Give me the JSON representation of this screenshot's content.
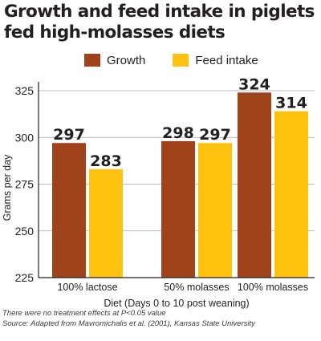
{
  "chart_data": {
    "type": "bar",
    "title": "Growth and feed intake in piglets fed high-molasses diets",
    "categories": [
      "100% lactose",
      "50% molasses",
      "100% molasses"
    ],
    "series": [
      {
        "name": "Growth",
        "values": [
          297,
          298,
          324
        ],
        "color": "#a1431a"
      },
      {
        "name": "Feed intake",
        "values": [
          283,
          297,
          314
        ],
        "color": "#ffc20e"
      }
    ],
    "xlabel": "Diet (Days 0 to 10 post weaning)",
    "ylabel": "Grams per day",
    "ylim": [
      225,
      330
    ],
    "yticks": [
      225,
      250,
      275,
      300,
      325
    ],
    "grid": true,
    "legend_position": "top",
    "data_labels": true
  },
  "footnotes": {
    "note": "There were no treatment effects at P<0.05 value",
    "source": "Source: Adapted from Mavromichalis et al. (2001), Kansas State University"
  }
}
